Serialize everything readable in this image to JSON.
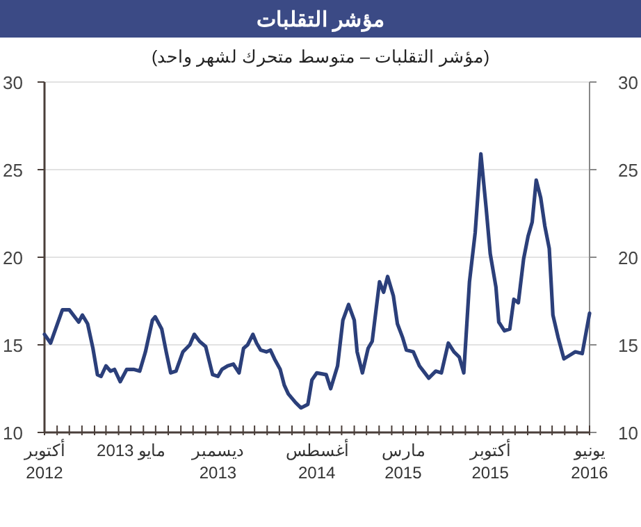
{
  "chart_data": {
    "type": "line",
    "title": "مؤشر التقلبات",
    "subtitle": "(مؤشر التقلبات – متوسط متحرك لشهر واحد)",
    "x": [
      "2012-10-01",
      "2012-10-16",
      "2012-11-14",
      "2012-12-01",
      "2012-12-24",
      "2013-01-02",
      "2013-01-15",
      "2013-01-28",
      "2013-02-08",
      "2013-02-17",
      "2013-03-01",
      "2013-03-12",
      "2013-03-22",
      "2013-04-05",
      "2013-04-21",
      "2013-05-08",
      "2013-05-23",
      "2013-06-06",
      "2013-06-23",
      "2013-06-30",
      "2013-07-16",
      "2013-07-27",
      "2013-08-07",
      "2013-08-20",
      "2013-09-06",
      "2013-09-23",
      "2013-10-04",
      "2013-10-17",
      "2013-11-01",
      "2013-11-18",
      "2013-12-01",
      "2013-12-11",
      "2013-12-25",
      "2014-01-08",
      "2014-01-22",
      "2014-02-02",
      "2014-02-12",
      "2014-02-25",
      "2014-03-06",
      "2014-03-16",
      "2014-03-30",
      "2014-04-09",
      "2014-04-19",
      "2014-05-03",
      "2014-05-13",
      "2014-05-23",
      "2014-06-10",
      "2014-06-23",
      "2014-07-10",
      "2014-07-20",
      "2014-08-01",
      "2014-08-24",
      "2014-09-04",
      "2014-09-21",
      "2014-10-04",
      "2014-10-18",
      "2014-11-01",
      "2014-11-08",
      "2014-11-21",
      "2014-12-05",
      "2014-12-15",
      "2015-01-02",
      "2015-01-12",
      "2015-01-22",
      "2015-02-05",
      "2015-02-15",
      "2015-02-28",
      "2015-03-09",
      "2015-03-26",
      "2015-04-10",
      "2015-04-20",
      "2015-05-03",
      "2015-05-20",
      "2015-06-03",
      "2015-06-20",
      "2015-07-04",
      "2015-07-17",
      "2015-07-28",
      "2015-08-11",
      "2015-08-25",
      "2015-09-08",
      "2015-09-21",
      "2015-10-01",
      "2015-10-15",
      "2015-10-22",
      "2015-11-05",
      "2015-11-18",
      "2015-11-28",
      "2015-12-09",
      "2015-12-22",
      "2016-01-02",
      "2016-01-12",
      "2016-01-22",
      "2016-02-02",
      "2016-02-12",
      "2016-02-23",
      "2016-03-03",
      "2016-03-16",
      "2016-03-30",
      "2016-04-13",
      "2016-04-27",
      "2016-05-14",
      "2016-06-01"
    ],
    "series": [
      {
        "color": "#2b3f7a",
        "values": [
          15.6,
          15.1,
          17.0,
          17.0,
          16.3,
          16.7,
          16.2,
          14.8,
          13.3,
          13.2,
          13.8,
          13.5,
          13.6,
          12.9,
          13.6,
          13.6,
          13.5,
          14.6,
          16.4,
          16.6,
          15.9,
          14.6,
          13.4,
          13.5,
          14.6,
          15.0,
          15.6,
          15.2,
          14.9,
          13.3,
          13.2,
          13.6,
          13.8,
          13.9,
          13.4,
          14.8,
          15.0,
          15.6,
          15.1,
          14.7,
          14.6,
          14.7,
          14.2,
          13.6,
          12.7,
          12.2,
          11.7,
          11.4,
          11.6,
          13.0,
          13.4,
          13.3,
          12.5,
          13.8,
          16.4,
          17.3,
          16.4,
          14.6,
          13.4,
          14.8,
          15.2,
          18.6,
          18.0,
          18.9,
          17.8,
          16.2,
          15.4,
          14.7,
          14.6,
          13.8,
          13.5,
          13.1,
          13.5,
          13.4,
          15.1,
          14.6,
          14.3,
          13.4,
          18.6,
          21.4,
          25.9,
          22.8,
          20.2,
          18.3,
          16.3,
          15.8,
          15.9,
          17.6,
          17.4,
          19.9,
          21.2,
          22.0,
          24.4,
          23.4,
          21.8,
          20.5,
          16.7,
          15.4,
          14.2,
          14.4,
          14.6,
          14.5,
          16.8
        ]
      }
    ],
    "xlim": [
      "2012-10-01",
      "2016-06-01"
    ],
    "xticks": [
      {
        "value": "2012-10",
        "label": "أكتوبر\n2012"
      },
      {
        "value": "2012-11",
        "label": null
      },
      {
        "value": "2012-12",
        "label": null
      },
      {
        "value": "2013-01",
        "label": null
      },
      {
        "value": "2013-02",
        "label": null
      },
      {
        "value": "2013-03",
        "label": null
      },
      {
        "value": "2013-04",
        "label": null
      },
      {
        "value": "2013-05",
        "label": "مايو 2013"
      },
      {
        "value": "2013-06",
        "label": null
      },
      {
        "value": "2013-07",
        "label": null
      },
      {
        "value": "2013-08",
        "label": null
      },
      {
        "value": "2013-09",
        "label": null
      },
      {
        "value": "2013-10",
        "label": null
      },
      {
        "value": "2013-11",
        "label": null
      },
      {
        "value": "2013-12",
        "label": "ديسمبر\n2013"
      },
      {
        "value": "2014-01",
        "label": null
      },
      {
        "value": "2014-02",
        "label": null
      },
      {
        "value": "2014-03",
        "label": null
      },
      {
        "value": "2014-04",
        "label": null
      },
      {
        "value": "2014-05",
        "label": null
      },
      {
        "value": "2014-06",
        "label": null
      },
      {
        "value": "2014-07",
        "label": null
      },
      {
        "value": "2014-08",
        "label": "أغسطس\n2014"
      },
      {
        "value": "2014-09",
        "label": null
      },
      {
        "value": "2014-10",
        "label": null
      },
      {
        "value": "2014-11",
        "label": null
      },
      {
        "value": "2014-12",
        "label": null
      },
      {
        "value": "2015-01",
        "label": null
      },
      {
        "value": "2015-02",
        "label": null
      },
      {
        "value": "2015-03",
        "label": "مارس\n2015"
      },
      {
        "value": "2015-04",
        "label": null
      },
      {
        "value": "2015-05",
        "label": null
      },
      {
        "value": "2015-06",
        "label": null
      },
      {
        "value": "2015-07",
        "label": null
      },
      {
        "value": "2015-08",
        "label": null
      },
      {
        "value": "2015-09",
        "label": null
      },
      {
        "value": "2015-10",
        "label": "أكتوبر\n2015"
      },
      {
        "value": "2015-11",
        "label": null
      },
      {
        "value": "2015-12",
        "label": null
      },
      {
        "value": "2016-01",
        "label": null
      },
      {
        "value": "2016-02",
        "label": null
      },
      {
        "value": "2016-03",
        "label": null
      },
      {
        "value": "2016-04",
        "label": null
      },
      {
        "value": "2016-05",
        "label": null
      },
      {
        "value": "2016-06",
        "label": "يونيو\n2016"
      }
    ],
    "ylim": [
      10,
      30
    ],
    "yticks": [
      10,
      15,
      20,
      25,
      30
    ],
    "y2lim": [
      10,
      30
    ],
    "y2ticks": [
      10,
      15,
      20,
      25,
      30
    ],
    "grid": "y"
  }
}
